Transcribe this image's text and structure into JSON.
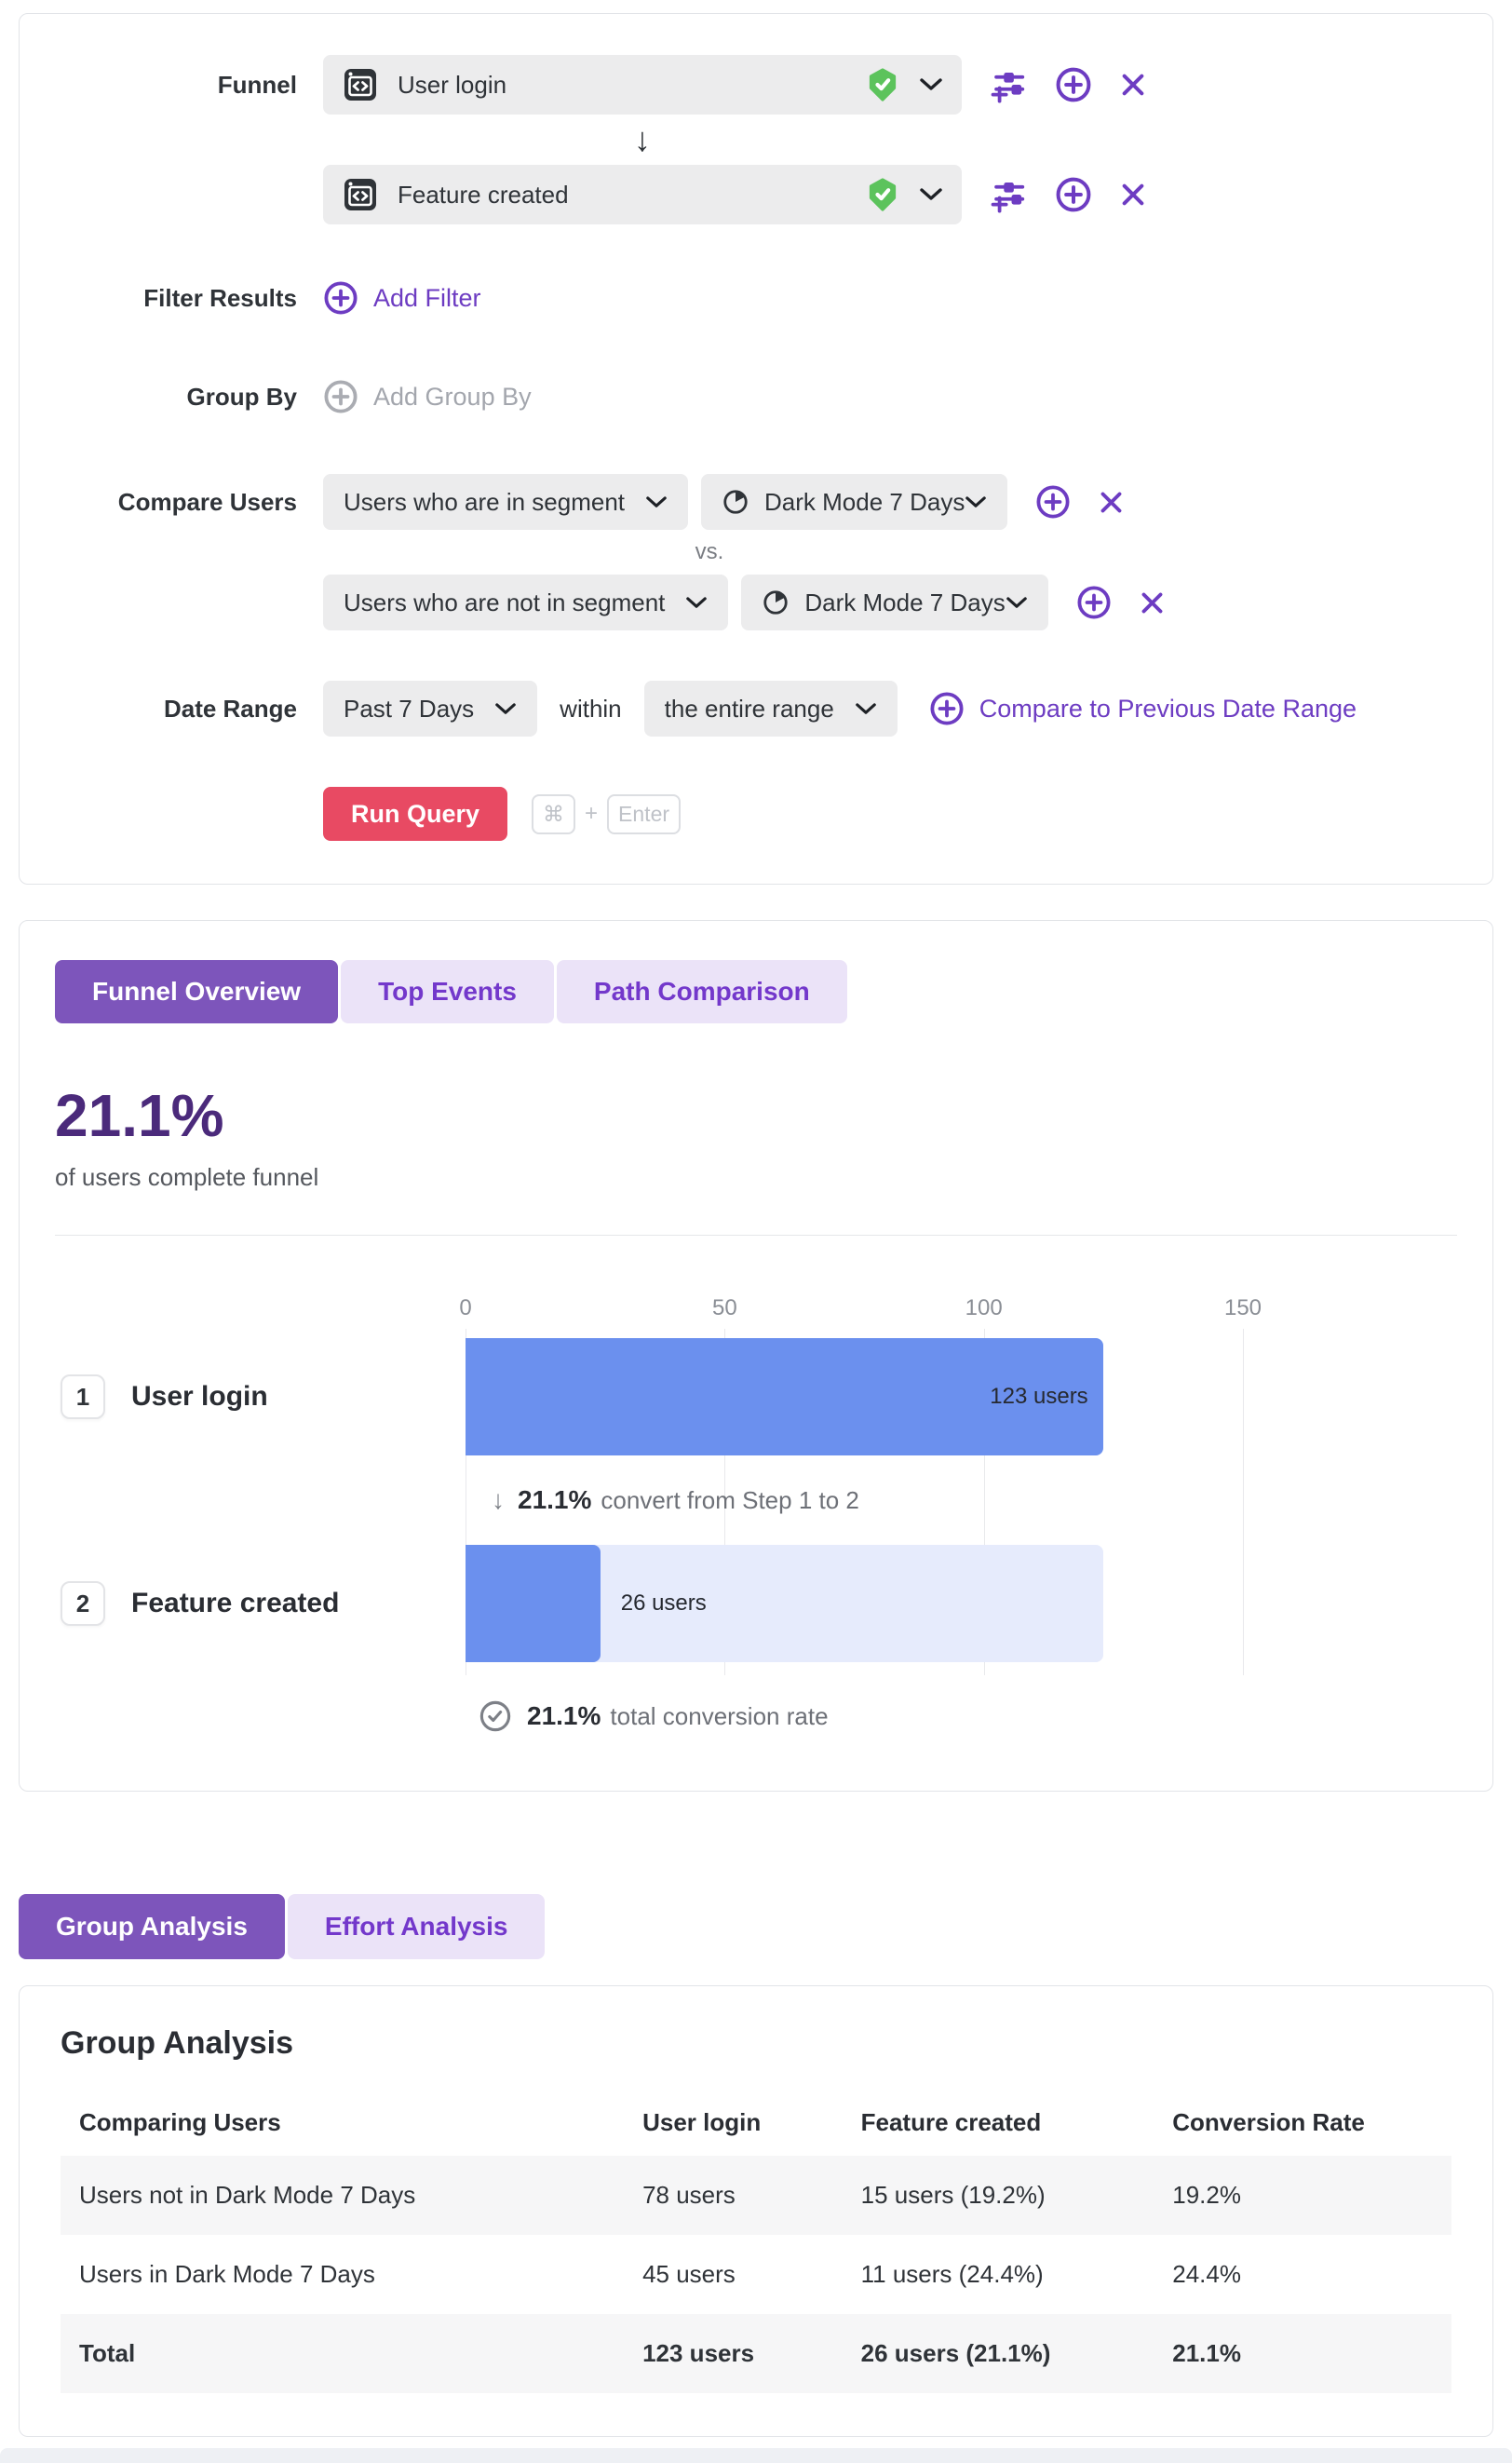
{
  "colors": {
    "accent_purple": "#6d3cc2",
    "tab_active_bg": "#7d55bb",
    "tab_inactive_bg": "#ebe3f8",
    "run_button_red": "#e84a63",
    "success_green": "#5cc35c",
    "bar_blue": "#6b90ee",
    "bar_track": "#e6ebfc",
    "big_number_purple": "#4b2a7b"
  },
  "query_builder": {
    "funnel_label": "Funnel",
    "steps": [
      {
        "name": "User login"
      },
      {
        "name": "Feature created"
      }
    ],
    "step_arrow": "↓",
    "filter_results": {
      "label": "Filter Results",
      "add_label": "Add Filter"
    },
    "group_by": {
      "label": "Group By",
      "add_label": "Add Group By"
    },
    "compare_users": {
      "label": "Compare Users",
      "vs_label": "vs.",
      "rows": [
        {
          "selector": "Users who are in segment",
          "segment": "Dark Mode 7 Days"
        },
        {
          "selector": "Users who are not in segment",
          "segment": "Dark Mode 7 Days"
        }
      ]
    },
    "date_range": {
      "label": "Date Range",
      "range": "Past 7 Days",
      "within_label": "within",
      "window": "the entire range",
      "compare_link": "Compare to Previous Date Range"
    },
    "run_query": {
      "label": "Run Query",
      "kbd_cmd": "⌘",
      "kbd_plus": "+",
      "kbd_enter": "Enter"
    }
  },
  "results": {
    "tabs": [
      {
        "label": "Funnel Overview",
        "active": true
      },
      {
        "label": "Top Events",
        "active": false
      },
      {
        "label": "Path Comparison",
        "active": false
      }
    ],
    "headline": {
      "value": "21.1%",
      "subtitle": "of users complete funnel"
    }
  },
  "chart_data": {
    "type": "bar",
    "orientation": "horizontal",
    "title": "Funnel Overview",
    "categories": [
      "User login",
      "Feature created"
    ],
    "step_numbers": [
      "1",
      "2"
    ],
    "values": [
      123,
      26
    ],
    "value_labels": [
      "123 users",
      "26 users"
    ],
    "xlim": [
      0,
      150
    ],
    "x_ticks": [
      0,
      50,
      100,
      150
    ],
    "grid": true,
    "annotations": {
      "step_conversion": {
        "arrow": "↓",
        "pct": "21.1%",
        "text": "convert from Step 1 to 2"
      },
      "total_conversion": {
        "pct": "21.1%",
        "text": "total conversion rate"
      }
    }
  },
  "analysis_tabs": [
    {
      "label": "Group Analysis",
      "active": true
    },
    {
      "label": "Effort Analysis",
      "active": false
    }
  ],
  "group_analysis": {
    "title": "Group Analysis",
    "columns": [
      "Comparing Users",
      "User login",
      "Feature created",
      "Conversion Rate"
    ],
    "rows": [
      {
        "group": "Users not in Dark Mode 7 Days",
        "user_login": "78 users",
        "feature_created": "15 users (19.2%)",
        "conversion_rate": "19.2%"
      },
      {
        "group": "Users in Dark Mode 7 Days",
        "user_login": "45 users",
        "feature_created": "11 users (24.4%)",
        "conversion_rate": "24.4%"
      },
      {
        "group": "Total",
        "user_login": "123 users",
        "feature_created": "26 users (21.1%)",
        "conversion_rate": "21.1%"
      }
    ]
  }
}
